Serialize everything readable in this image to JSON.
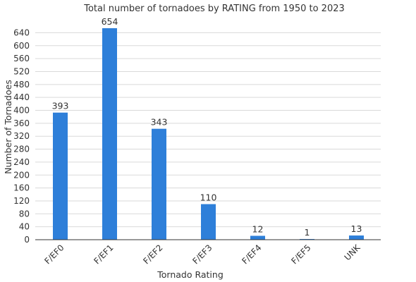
{
  "chart_data": {
    "type": "bar",
    "title": "Total number of tornadoes by RATING from 1950 to 2023",
    "xlabel": "Tornado Rating",
    "ylabel": "Number of Tornadoes",
    "categories": [
      "F/EF0",
      "F/EF1",
      "F/EF2",
      "F/EF3",
      "F/EF4",
      "F/EF5",
      "UNK"
    ],
    "values": [
      393,
      654,
      343,
      110,
      12,
      1,
      13
    ],
    "data_labels": [
      "393",
      "654",
      "343",
      "110",
      "12",
      "1",
      "13"
    ],
    "ylim": [
      0,
      654
    ],
    "yticks": [
      0,
      40,
      80,
      120,
      160,
      200,
      240,
      280,
      320,
      360,
      400,
      440,
      480,
      520,
      560,
      600,
      640
    ],
    "grid": true,
    "bar_color": "#2e7fd9"
  }
}
